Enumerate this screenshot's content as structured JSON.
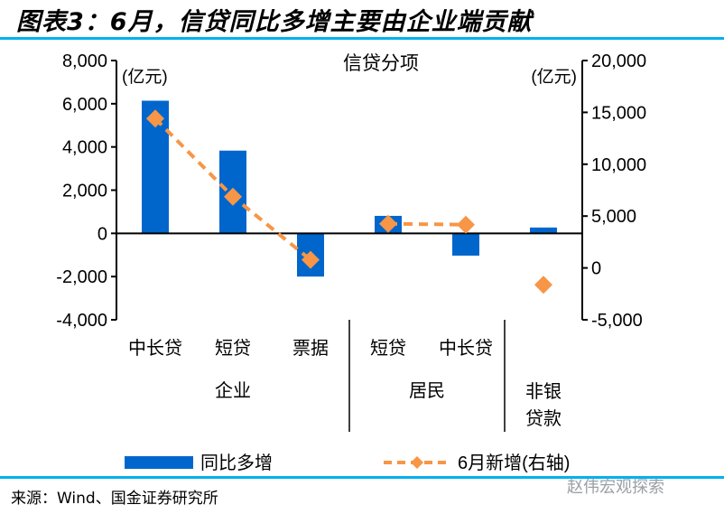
{
  "title": "图表3：6月，信贷同比多增主要由企业端贡献",
  "source": "来源：Wind、国金证券研究所",
  "watermark": "赵伟宏观探索",
  "chart_data": {
    "type": "bar+line",
    "title": "信贷分项",
    "left_unit": "(亿元)",
    "right_unit": "(亿元)",
    "categories": [
      "中长贷",
      "短贷",
      "票据",
      "短贷",
      "中长贷",
      "非银贷款"
    ],
    "category_labels": [
      "中长贷",
      "短贷",
      "票据",
      "短贷",
      "中长贷",
      ""
    ],
    "groups": [
      {
        "label": "企业",
        "categories": [
          0,
          1,
          2
        ]
      },
      {
        "label": "居民",
        "categories": [
          3,
          4
        ]
      },
      {
        "label": "非银贷款",
        "lines": [
          "非银",
          "贷款"
        ],
        "categories": [
          5
        ]
      }
    ],
    "left_axis": {
      "ylim": [
        -4000,
        8000
      ],
      "ticks": [
        -4000,
        -2000,
        0,
        2000,
        4000,
        6000,
        8000
      ],
      "tick_labels": [
        "-4,000",
        "-2,000",
        "0",
        "2,000",
        "4,000",
        "6,000",
        "8,000"
      ]
    },
    "right_axis": {
      "ylim": [
        -5000,
        20000
      ],
      "ticks": [
        -5000,
        0,
        5000,
        10000,
        15000,
        20000
      ],
      "tick_labels": [
        "-5,000",
        "0",
        "5,000",
        "10,000",
        "15,000",
        "20,000"
      ]
    },
    "series": [
      {
        "name": "同比多增",
        "type": "bar",
        "axis": "left",
        "color": "#0066cc",
        "values": [
          6140,
          3830,
          -2000,
          810,
          -1030,
          270
        ]
      },
      {
        "name": "6月新增(右轴)",
        "type": "line",
        "axis": "right",
        "color": "#f79646",
        "dashed": true,
        "marker": "diamond",
        "values": [
          14400,
          6870,
          780,
          4260,
          4170,
          -1630
        ],
        "connected_segments": [
          [
            0,
            1,
            2
          ],
          [
            3,
            4
          ],
          [
            5
          ]
        ]
      }
    ],
    "grid": false,
    "legend": "bottom"
  }
}
